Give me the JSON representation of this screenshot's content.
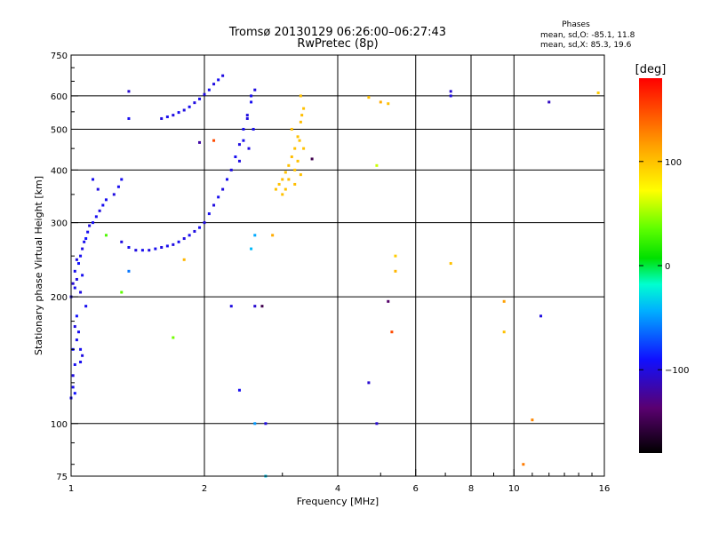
{
  "chart_data": {
    "type": "scatter",
    "title": "Tromsø 20130129 06:26:00–06:27:43",
    "subtitle": "RwPretec (8p)",
    "xlabel": "Frequency [MHz]",
    "ylabel": "Stationary phase Virtual Height [km]",
    "x_scale": "log",
    "y_scale": "log",
    "xlim": [
      1,
      16
    ],
    "ylim": [
      75,
      750
    ],
    "x_ticks": [
      1,
      2,
      4,
      6,
      8,
      10,
      16
    ],
    "x_tick_labels": [
      "1",
      "2",
      "4",
      "6",
      "8",
      "10",
      "16"
    ],
    "x_minor_ticks": [
      3,
      5,
      7,
      9,
      11,
      12,
      13,
      14,
      15
    ],
    "y_ticks": [
      75,
      100,
      200,
      300,
      400,
      500,
      600,
      750
    ],
    "y_tick_labels": [
      "75",
      "100",
      "200",
      "300",
      "400",
      "500",
      "600",
      "750"
    ],
    "y_minor_ticks": [
      80,
      90,
      125,
      150,
      175,
      250,
      350,
      450,
      550,
      650,
      700
    ],
    "grid": true,
    "stats": {
      "heading": "Phases",
      "line_o": "mean, sd,O: -85.1, 11.8",
      "line_x": "mean, sd,X:  85.3, 19.6"
    },
    "colorbar": {
      "label": "[deg]",
      "range": [
        -180,
        180
      ],
      "ticks": [
        -100,
        0,
        100
      ],
      "tick_labels": [
        "−100",
        "0",
        "100"
      ]
    },
    "series": [
      {
        "points": [
          [
            1.0,
            115,
            -95
          ],
          [
            1.01,
            122,
            -95
          ],
          [
            1.02,
            118,
            -90
          ],
          [
            1.01,
            130,
            -100
          ],
          [
            1.02,
            138,
            -95
          ],
          [
            1.01,
            150,
            -90
          ],
          [
            1.03,
            158,
            -95
          ],
          [
            1.02,
            170,
            -100
          ],
          [
            1.04,
            165,
            -95
          ],
          [
            1.03,
            180,
            -90
          ],
          [
            1.05,
            150,
            -95
          ],
          [
            1.06,
            145,
            -100
          ],
          [
            1.05,
            140,
            -95
          ],
          [
            1.0,
            200,
            -100
          ],
          [
            1.02,
            210,
            -95
          ],
          [
            1.03,
            220,
            -100
          ],
          [
            1.02,
            230,
            -95
          ],
          [
            1.04,
            240,
            -90
          ],
          [
            1.05,
            250,
            -95
          ],
          [
            1.06,
            260,
            -100
          ],
          [
            1.07,
            270,
            -95
          ],
          [
            1.08,
            275,
            -90
          ],
          [
            1.09,
            285,
            -95
          ],
          [
            1.1,
            295,
            -100
          ],
          [
            1.12,
            300,
            -95
          ],
          [
            1.14,
            310,
            -95
          ],
          [
            1.16,
            320,
            -100
          ],
          [
            1.18,
            330,
            -95
          ],
          [
            1.2,
            340,
            -95
          ],
          [
            1.15,
            360,
            -100
          ],
          [
            1.12,
            380,
            -95
          ],
          [
            1.25,
            350,
            -100
          ],
          [
            1.28,
            365,
            -95
          ],
          [
            1.3,
            380,
            -95
          ],
          [
            1.01,
            215,
            -105
          ],
          [
            1.05,
            205,
            -100
          ],
          [
            1.08,
            190,
            -95
          ],
          [
            1.03,
            245,
            -100
          ],
          [
            1.06,
            225,
            -95
          ],
          [
            1.3,
            270,
            -100
          ],
          [
            1.35,
            262,
            -95
          ],
          [
            1.4,
            258,
            -100
          ],
          [
            1.45,
            258,
            -95
          ],
          [
            1.5,
            258,
            -100
          ],
          [
            1.55,
            260,
            -95
          ],
          [
            1.6,
            262,
            -100
          ],
          [
            1.65,
            264,
            -95
          ],
          [
            1.7,
            266,
            -100
          ],
          [
            1.75,
            270,
            -95
          ],
          [
            1.8,
            275,
            -100
          ],
          [
            1.85,
            280,
            -95
          ],
          [
            1.9,
            286,
            -100
          ],
          [
            1.95,
            292,
            -95
          ],
          [
            2.0,
            300,
            -100
          ],
          [
            2.05,
            315,
            -95
          ],
          [
            2.1,
            330,
            -100
          ],
          [
            2.15,
            345,
            -95
          ],
          [
            2.2,
            360,
            -100
          ],
          [
            2.25,
            380,
            -95
          ],
          [
            2.3,
            400,
            -100
          ],
          [
            2.35,
            430,
            -95
          ],
          [
            2.4,
            460,
            -100
          ],
          [
            2.45,
            500,
            -95
          ],
          [
            2.5,
            540,
            -100
          ],
          [
            2.55,
            580,
            -95
          ],
          [
            2.6,
            620,
            -100
          ],
          [
            1.6,
            530,
            -100
          ],
          [
            1.65,
            535,
            -95
          ],
          [
            1.7,
            540,
            -100
          ],
          [
            1.75,
            548,
            -95
          ],
          [
            1.8,
            555,
            -100
          ],
          [
            1.85,
            565,
            -95
          ],
          [
            1.9,
            578,
            -100
          ],
          [
            1.95,
            590,
            -95
          ],
          [
            2.0,
            605,
            -100
          ],
          [
            2.05,
            620,
            -95
          ],
          [
            2.1,
            640,
            -100
          ],
          [
            2.15,
            655,
            -95
          ],
          [
            2.2,
            670,
            -100
          ],
          [
            2.4,
            420,
            -100
          ],
          [
            2.45,
            470,
            -95
          ],
          [
            2.5,
            530,
            -100
          ],
          [
            2.55,
            600,
            -95
          ],
          [
            2.52,
            450,
            -100
          ],
          [
            2.58,
            500,
            -95
          ],
          [
            1.35,
            615,
            -105
          ],
          [
            1.35,
            530,
            -95
          ],
          [
            2.75,
            100,
            -100
          ],
          [
            4.9,
            100,
            -105
          ],
          [
            7.2,
            615,
            -105
          ],
          [
            7.2,
            600,
            -100
          ],
          [
            12.0,
            580,
            -110
          ],
          [
            11.5,
            180,
            -100
          ],
          [
            4.7,
            125,
            -105
          ],
          [
            2.4,
            120,
            -95
          ],
          [
            2.3,
            190,
            -100
          ],
          [
            2.6,
            190,
            -105
          ]
        ]
      },
      {
        "points": [
          [
            2.9,
            360,
            100
          ],
          [
            2.95,
            370,
            100
          ],
          [
            3.0,
            380,
            102
          ],
          [
            3.05,
            395,
            100
          ],
          [
            3.1,
            410,
            100
          ],
          [
            3.15,
            430,
            102
          ],
          [
            3.2,
            450,
            100
          ],
          [
            3.25,
            480,
            100
          ],
          [
            3.3,
            520,
            102
          ],
          [
            3.35,
            560,
            100
          ],
          [
            3.3,
            600,
            100
          ],
          [
            3.2,
            400,
            100
          ],
          [
            3.1,
            380,
            102
          ],
          [
            3.25,
            420,
            100
          ],
          [
            3.35,
            450,
            100
          ],
          [
            3.15,
            500,
            102
          ],
          [
            3.05,
            360,
            100
          ],
          [
            3.0,
            350,
            100
          ],
          [
            3.2,
            370,
            102
          ],
          [
            3.3,
            390,
            100
          ],
          [
            3.28,
            470,
            100
          ],
          [
            3.32,
            540,
            102
          ],
          [
            2.85,
            280,
            110
          ],
          [
            4.7,
            595,
            100
          ],
          [
            5.0,
            580,
            110
          ],
          [
            5.2,
            575,
            100
          ],
          [
            5.4,
            250,
            95
          ],
          [
            5.4,
            230,
            105
          ],
          [
            7.2,
            240,
            100
          ],
          [
            9.5,
            195,
            115
          ],
          [
            9.5,
            165,
            100
          ],
          [
            10.5,
            80,
            130
          ],
          [
            11.0,
            102,
            125
          ],
          [
            15.5,
            610,
            95
          ],
          [
            1.8,
            245,
            105
          ]
        ]
      },
      {
        "points": [
          [
            1.7,
            160,
            40
          ],
          [
            4.9,
            410,
            60
          ],
          [
            1.2,
            280,
            30
          ],
          [
            1.3,
            205,
            35
          ]
        ]
      },
      {
        "points": [
          [
            2.55,
            260,
            -40
          ],
          [
            2.6,
            280,
            -45
          ],
          [
            2.75,
            75,
            -35
          ],
          [
            2.6,
            100,
            -50
          ],
          [
            1.35,
            230,
            -60
          ]
        ]
      },
      {
        "points": [
          [
            1.95,
            465,
            -120
          ],
          [
            2.1,
            470,
            150
          ],
          [
            3.5,
            425,
            -150
          ],
          [
            5.2,
            195,
            -140
          ],
          [
            5.3,
            165,
            150
          ],
          [
            2.7,
            190,
            -150
          ]
        ]
      }
    ]
  }
}
